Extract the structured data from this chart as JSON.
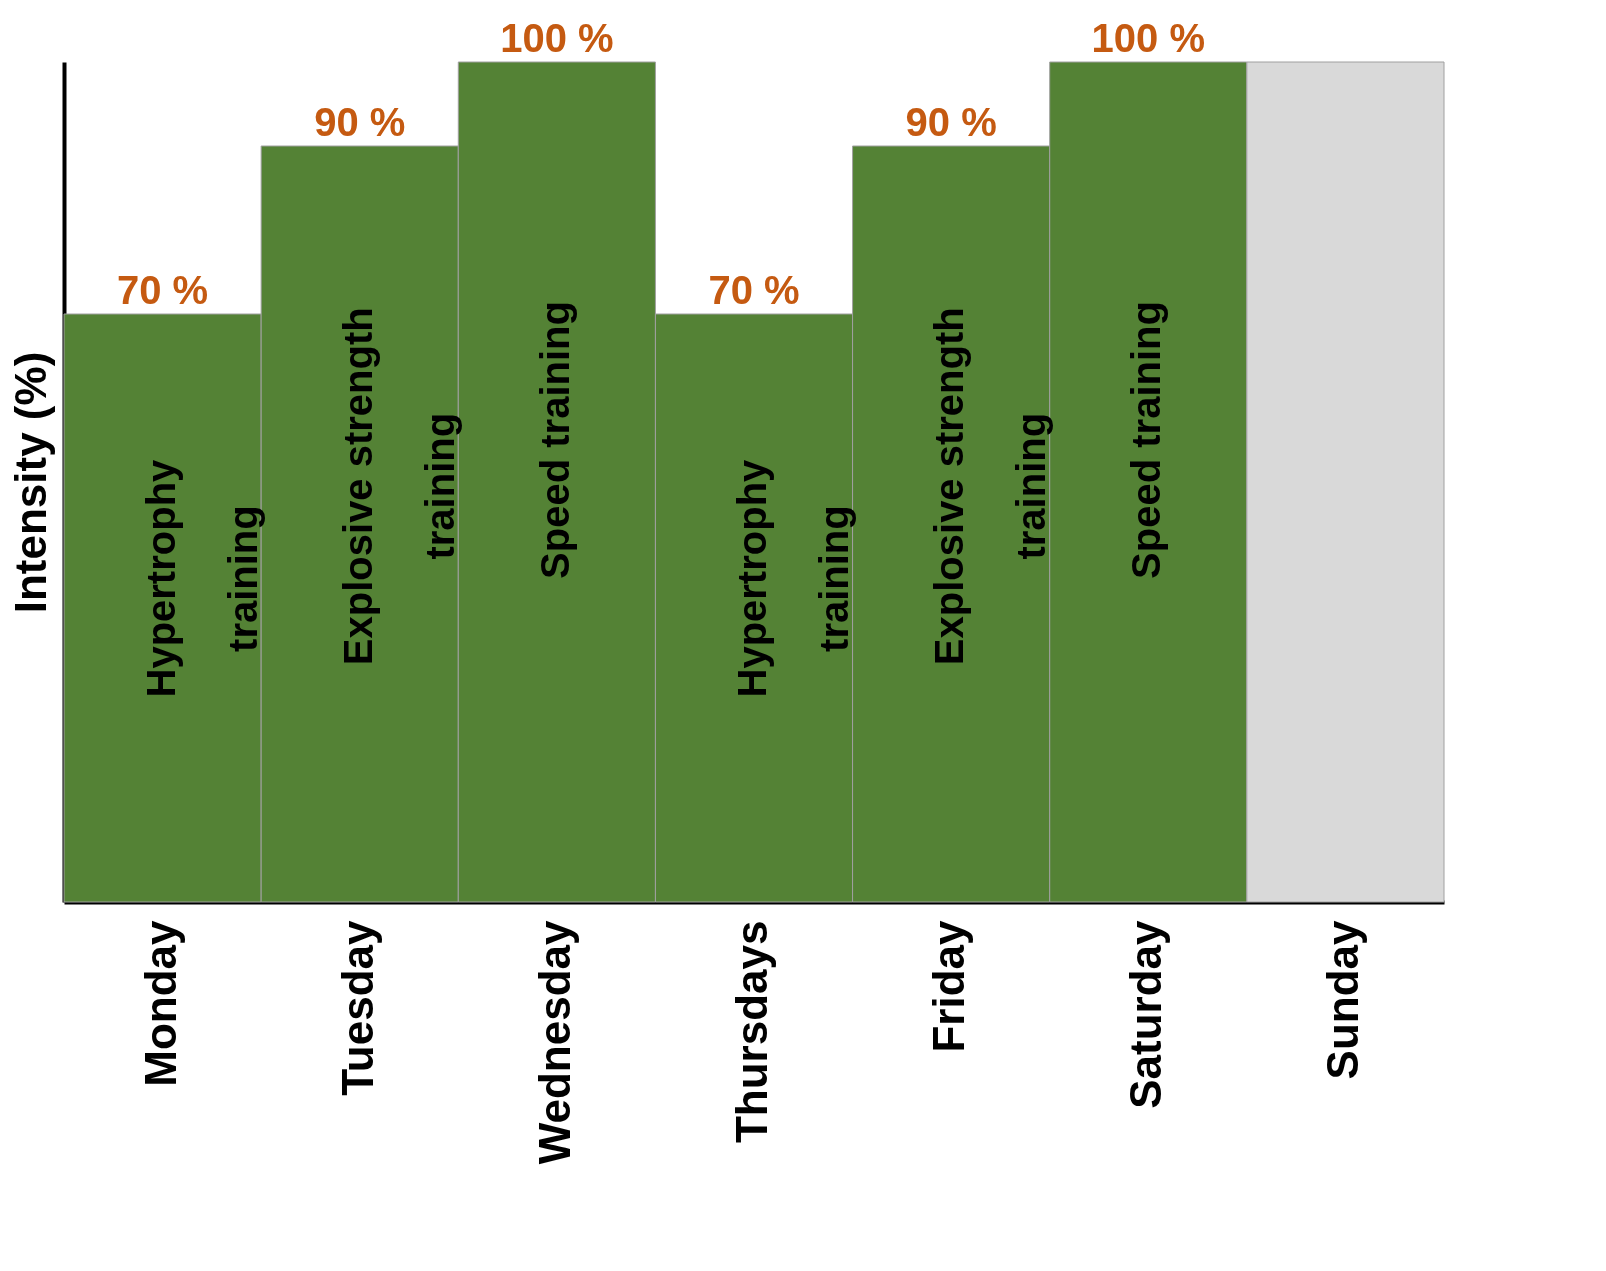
{
  "chart_data": {
    "type": "bar",
    "ylabel": "Intensity (%)",
    "categories": [
      "Monday",
      "Tuesday",
      "Wednesday",
      "Thursdays",
      "Friday",
      "Saturday",
      "Sunday"
    ],
    "values": [
      70,
      90,
      100,
      70,
      90,
      100,
      100
    ],
    "colors": [
      "#548235",
      "#548235",
      "#548235",
      "#548235",
      "#548235",
      "#548235",
      "#d9d9d9"
    ],
    "value_labels": [
      "70 %",
      "90 %",
      "100 %",
      "70 %",
      "90 %",
      "100 %",
      null
    ],
    "annotations": [
      "Hypertrophy\ntraining",
      "Explosive strength\ntraining",
      "Speed training",
      "Hypertrophy\ntraining",
      "Explosive strength\ntraining",
      "Speed training"
    ],
    "grid": false
  }
}
